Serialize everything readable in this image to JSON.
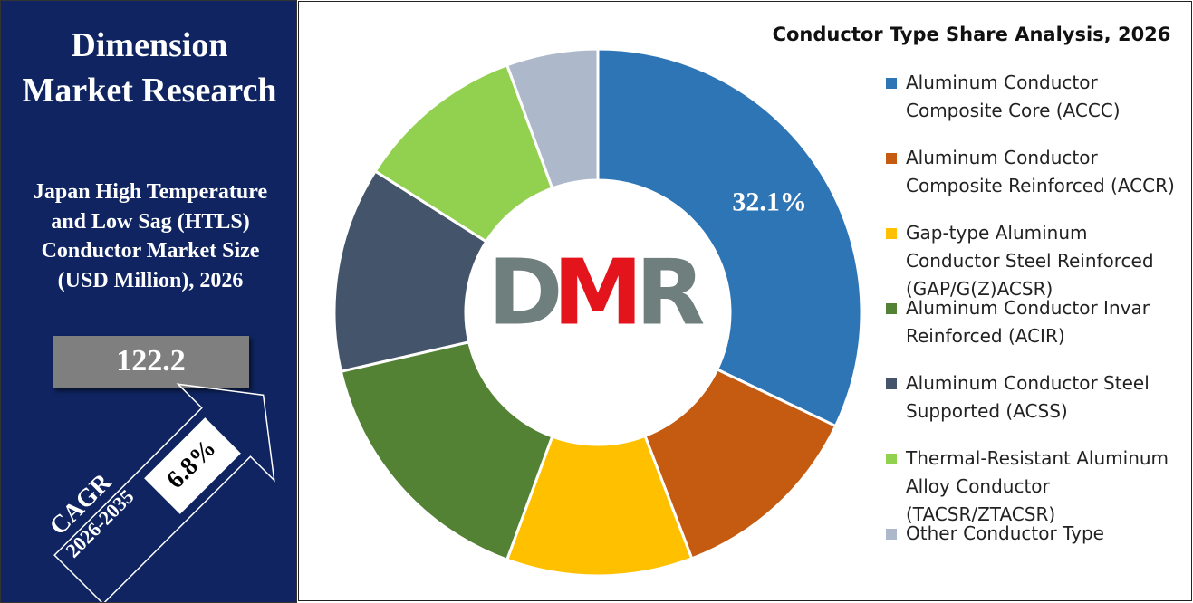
{
  "header": {
    "brand": "Dimension Market Research",
    "subtitle": "Japan High Temperature and Low Sag (HTLS) Conductor Market Size (USD Million), 2026",
    "market_value": "122.2",
    "cagr_label": "CAGR",
    "cagr_period": "2026-2035",
    "cagr_value": "6.8%"
  },
  "logo": [
    "D",
    "M",
    "R"
  ],
  "chart_data": {
    "type": "donut",
    "title": "Conductor Type Share Analysis, 2026",
    "categories": [
      "Aluminum Conductor Composite Core (ACCC)",
      "Aluminum Conductor Composite Reinforced (ACCR)",
      "Gap-type Aluminum Conductor Steel Reinforced (GAP/G(Z)ACSR)",
      "Aluminum Conductor Invar Reinforced (ACIR)",
      "Aluminum Conductor Steel Supported (ACSS)",
      "Thermal-Resistant Aluminum Alloy Conductor (TACSR/ZTACSR)",
      "Other Conductor Type"
    ],
    "values": [
      32.1,
      12.1,
      11.4,
      15.8,
      12.6,
      10.4,
      5.6
    ],
    "value_labels": [
      "32.1%",
      null,
      null,
      null,
      null,
      null,
      null
    ],
    "colors": [
      "#2e75b6",
      "#c55a11",
      "#ffc000",
      "#548235",
      "#44546a",
      "#92d050",
      "#adb9ca"
    ]
  }
}
